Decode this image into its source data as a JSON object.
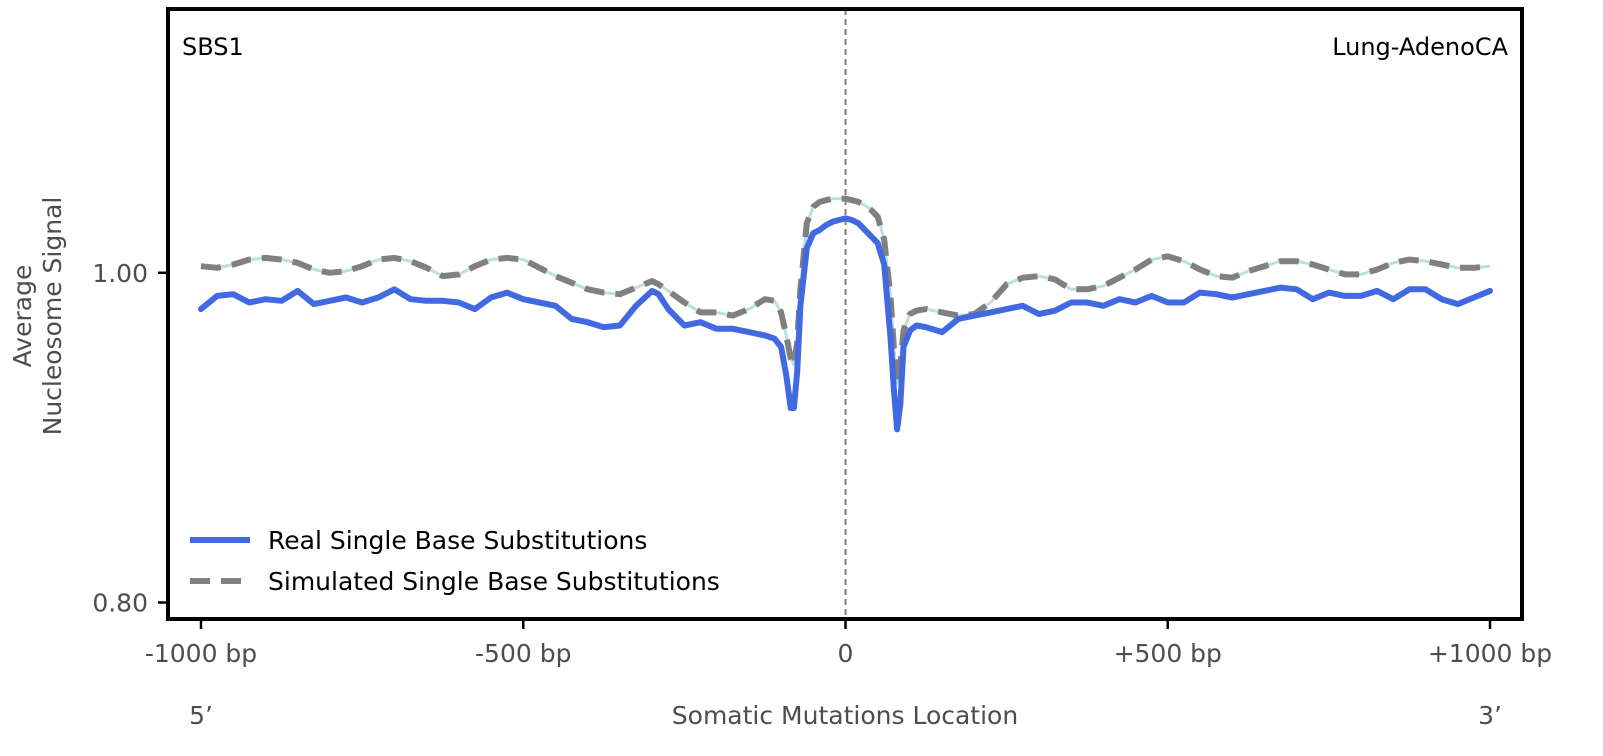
{
  "chart_data": {
    "type": "line",
    "title": "",
    "annotations": {
      "left": "SBS1",
      "right": "Lung-AdenoCA"
    },
    "xlabel": "Somatic Mutations Location",
    "ylabel_lines": [
      "Average",
      "Nucleosome Signal"
    ],
    "xlim": [
      -1000,
      1000
    ],
    "ylim": [
      0.79,
      1.16
    ],
    "x_ticks": [
      {
        "value": -1000,
        "label": "-1000 bp"
      },
      {
        "value": -500,
        "label": "-500 bp"
      },
      {
        "value": 0,
        "label": "0"
      },
      {
        "value": 500,
        "label": "+500 bp"
      },
      {
        "value": 1000,
        "label": "+1000 bp"
      }
    ],
    "y_ticks": [
      {
        "value": 0.8,
        "label": "0.80"
      },
      {
        "value": 1.0,
        "label": "1.00"
      }
    ],
    "end_labels": {
      "left": "5’",
      "right": "3’"
    },
    "center_line": {
      "x": 0,
      "style": "dashed"
    },
    "grid": false,
    "legend_position": "lower-left",
    "series": [
      {
        "name": "Real Single Base Substitutions",
        "color": "#4169e1",
        "style": "solid",
        "x": [
          -1000,
          -975,
          -950,
          -925,
          -900,
          -875,
          -850,
          -825,
          -800,
          -775,
          -750,
          -725,
          -700,
          -675,
          -650,
          -625,
          -600,
          -575,
          -550,
          -525,
          -500,
          -475,
          -450,
          -425,
          -400,
          -375,
          -350,
          -325,
          -300,
          -290,
          -275,
          -250,
          -225,
          -200,
          -175,
          -150,
          -125,
          -110,
          -100,
          -92,
          -85,
          -80,
          -75,
          -70,
          -60,
          -50,
          -40,
          -30,
          -20,
          -10,
          0,
          10,
          20,
          30,
          40,
          50,
          60,
          70,
          75,
          80,
          85,
          90,
          100,
          110,
          125,
          150,
          175,
          200,
          225,
          250,
          275,
          300,
          325,
          350,
          375,
          400,
          425,
          450,
          475,
          500,
          525,
          550,
          575,
          600,
          625,
          650,
          675,
          700,
          725,
          750,
          775,
          800,
          825,
          850,
          875,
          900,
          925,
          950,
          975,
          1000
        ],
        "y": [
          0.978,
          0.986,
          0.987,
          0.982,
          0.984,
          0.983,
          0.989,
          0.981,
          0.983,
          0.985,
          0.982,
          0.985,
          0.99,
          0.984,
          0.983,
          0.983,
          0.982,
          0.978,
          0.985,
          0.988,
          0.984,
          0.982,
          0.98,
          0.972,
          0.97,
          0.967,
          0.968,
          0.98,
          0.989,
          0.987,
          0.978,
          0.968,
          0.97,
          0.966,
          0.966,
          0.964,
          0.962,
          0.96,
          0.955,
          0.938,
          0.918,
          0.918,
          0.94,
          0.98,
          1.015,
          1.024,
          1.026,
          1.029,
          1.031,
          1.032,
          1.033,
          1.032,
          1.03,
          1.026,
          1.022,
          1.018,
          1.005,
          0.96,
          0.93,
          0.905,
          0.92,
          0.955,
          0.965,
          0.968,
          0.967,
          0.964,
          0.972,
          0.974,
          0.976,
          0.978,
          0.98,
          0.975,
          0.977,
          0.982,
          0.982,
          0.98,
          0.984,
          0.982,
          0.986,
          0.982,
          0.982,
          0.988,
          0.987,
          0.985,
          0.987,
          0.989,
          0.991,
          0.99,
          0.984,
          0.988,
          0.986,
          0.986,
          0.989,
          0.984,
          0.99,
          0.99,
          0.984,
          0.981,
          0.985,
          0.989
        ]
      },
      {
        "name": "Simulated Single Base Substitutions",
        "color": "#808080",
        "style": "dashed",
        "x": [
          -1000,
          -975,
          -950,
          -925,
          -900,
          -875,
          -850,
          -825,
          -800,
          -775,
          -750,
          -725,
          -700,
          -675,
          -650,
          -625,
          -600,
          -575,
          -550,
          -525,
          -500,
          -475,
          -450,
          -425,
          -400,
          -375,
          -350,
          -325,
          -300,
          -290,
          -275,
          -250,
          -225,
          -200,
          -175,
          -150,
          -125,
          -110,
          -100,
          -92,
          -85,
          -80,
          -75,
          -70,
          -60,
          -50,
          -40,
          -30,
          -20,
          -10,
          0,
          10,
          20,
          30,
          40,
          50,
          60,
          70,
          75,
          80,
          85,
          90,
          100,
          110,
          125,
          150,
          175,
          200,
          225,
          250,
          275,
          300,
          325,
          350,
          375,
          400,
          425,
          450,
          475,
          500,
          525,
          550,
          575,
          600,
          625,
          650,
          675,
          700,
          725,
          750,
          775,
          800,
          825,
          850,
          875,
          900,
          925,
          950,
          975,
          1000
        ],
        "y": [
          1.004,
          1.003,
          1.005,
          1.008,
          1.009,
          1.008,
          1.006,
          1.002,
          1.0,
          1.001,
          1.004,
          1.008,
          1.009,
          1.007,
          1.003,
          0.998,
          0.999,
          1.004,
          1.008,
          1.009,
          1.008,
          1.003,
          0.998,
          0.994,
          0.99,
          0.988,
          0.987,
          0.991,
          0.995,
          0.993,
          0.989,
          0.982,
          0.976,
          0.976,
          0.974,
          0.978,
          0.984,
          0.983,
          0.976,
          0.962,
          0.948,
          0.944,
          0.958,
          0.99,
          1.03,
          1.04,
          1.043,
          1.044,
          1.045,
          1.045,
          1.045,
          1.044,
          1.043,
          1.041,
          1.038,
          1.034,
          1.02,
          0.985,
          0.955,
          0.933,
          0.944,
          0.965,
          0.975,
          0.977,
          0.978,
          0.976,
          0.974,
          0.975,
          0.982,
          0.993,
          0.997,
          0.998,
          0.996,
          0.99,
          0.99,
          0.992,
          0.997,
          1.002,
          1.008,
          1.01,
          1.007,
          1.002,
          0.998,
          0.997,
          1.001,
          1.004,
          1.007,
          1.007,
          1.005,
          1.002,
          0.999,
          0.999,
          1.002,
          1.006,
          1.008,
          1.007,
          1.005,
          1.003,
          1.003,
          1.004
        ]
      }
    ]
  }
}
